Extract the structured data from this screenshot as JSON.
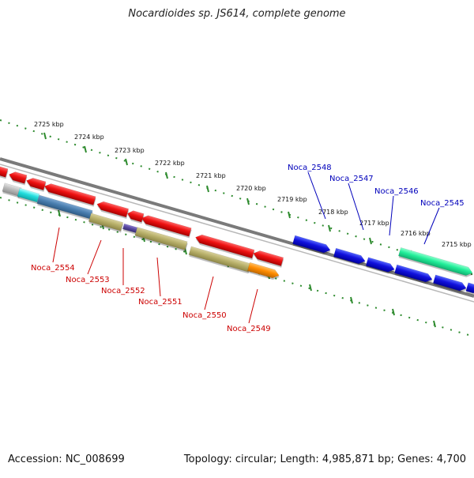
{
  "title": "Nocardioides sp. JS614, complete genome",
  "footer": {
    "accession": "Accession: NC_008699",
    "summary": "Topology: circular; Length: 4,985,871 bp; Genes: 4,700"
  },
  "colors": {
    "ruler": "#2e8b2e",
    "backbone": "#7a7a7a",
    "label_red": "#cc0000",
    "label_blue": "#0000bb",
    "gene_red": "#ee1111",
    "gene_blue": "#1111dd",
    "gene_green": "#22ee99",
    "gene_tan": "#b8b06a",
    "gene_steelblue": "#4a7fb0",
    "gene_cyan": "#22dddd",
    "gene_gray": "#bbbbbb",
    "gene_orange": "#ff8c00",
    "gene_purple": "#5a4aa0"
  },
  "ruler_ticks": [
    {
      "label": "2725 kbp"
    },
    {
      "label": "2724 kbp"
    },
    {
      "label": "2723 kbp"
    },
    {
      "label": "2722 kbp"
    },
    {
      "label": "2721 kbp"
    },
    {
      "label": "2720 kbp"
    },
    {
      "label": "2719 kbp"
    },
    {
      "label": "2718 kbp"
    },
    {
      "label": "2717 kbp"
    },
    {
      "label": "2716 kbp"
    },
    {
      "label": "2715 kbp"
    }
  ],
  "gene_labels_red": [
    {
      "label": "Noca_2554"
    },
    {
      "label": "Noca_2553"
    },
    {
      "label": "Noca_2552"
    },
    {
      "label": "Noca_2551"
    },
    {
      "label": "Noca_2550"
    },
    {
      "label": "Noca_2549"
    }
  ],
  "gene_labels_blue": [
    {
      "label": "Noca_2548"
    },
    {
      "label": "Noca_2547"
    },
    {
      "label": "Noca_2546"
    },
    {
      "label": "Noca_2545"
    }
  ]
}
